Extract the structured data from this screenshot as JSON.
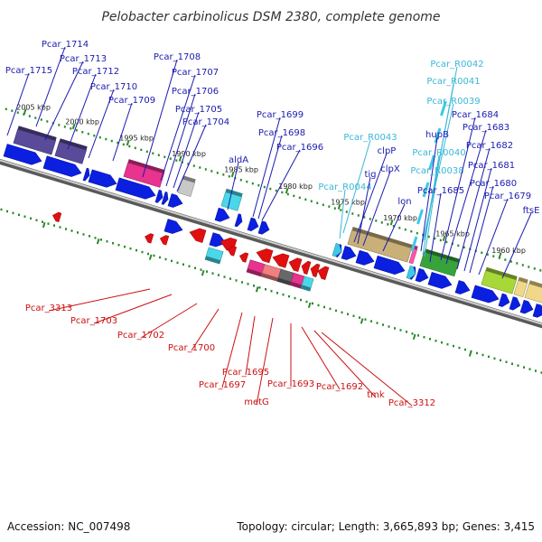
{
  "title": "Pelobacter carbinolicus DSM 2380, complete genome",
  "footer": {
    "accession": "Accession: NC_007498",
    "summary": "Topology: circular; Length: 3,665,893 bp; Genes: 3,415"
  },
  "colors": {
    "forward_gene": "#0a1fe0",
    "reverse_gene": "#e01010",
    "rna_gene": "#3fc8e8",
    "forward_label": "#1a1ab0",
    "reverse_label": "#cc1010",
    "rna_label": "#38b8d8",
    "backbone": "#8c8c8c",
    "tick": "#2a8a2a"
  },
  "axis": {
    "direction": "decreasing-left-to-right",
    "ticks": [
      {
        "label": "2005 kbp",
        "kbp": 2005
      },
      {
        "label": "2000 kbp",
        "kbp": 2000
      },
      {
        "label": "1995 kbp",
        "kbp": 1995
      },
      {
        "label": "1990 kbp",
        "kbp": 1990
      },
      {
        "label": "1985 kbp",
        "kbp": 1985
      },
      {
        "label": "1980 kbp",
        "kbp": 1980
      },
      {
        "label": "1975 kbp",
        "kbp": 1975
      },
      {
        "label": "1970 kbp",
        "kbp": 1970
      },
      {
        "label": "1965 kbp",
        "kbp": 1965
      },
      {
        "label": "1960 kbp",
        "kbp": 1960
      }
    ]
  },
  "cog_colors": [
    "#5a4a9a",
    "#e8338f",
    "#c8c8c8",
    "#4ad8e8",
    "#c8b078",
    "#39a33b",
    "#a8d838",
    "#f0d888",
    "#ff55aa",
    "#686868"
  ],
  "labels_forward": [
    "Pcar_1715",
    "Pcar_1714",
    "Pcar_1713",
    "Pcar_1712",
    "Pcar_1710",
    "Pcar_1709",
    "Pcar_1708",
    "Pcar_1707",
    "Pcar_1706",
    "Pcar_1705",
    "Pcar_1704",
    "aldA",
    "Pcar_1699",
    "Pcar_1698",
    "Pcar_1696",
    "Pcar_R0043",
    "Pcar_R0044",
    "clpP",
    "tig",
    "clpX",
    "lon",
    "Pcar_R0042",
    "Pcar_R0041",
    "Pcar_R0039",
    "hupB",
    "Pcar_R0040",
    "Pcar_R0038",
    "Pcar_1685",
    "Pcar_1684",
    "Pcar_1683",
    "Pcar_1682",
    "Pcar_1681",
    "Pcar_1680",
    "Pcar_1679",
    "ftsE"
  ],
  "labels_reverse": [
    "Pcar_3313",
    "Pcar_1703",
    "Pcar_1702",
    "Pcar_1700",
    "Pcar_1695",
    "Pcar_1697",
    "metG",
    "Pcar_1693",
    "Pcar_1692",
    "tmk",
    "Pcar_3312"
  ]
}
